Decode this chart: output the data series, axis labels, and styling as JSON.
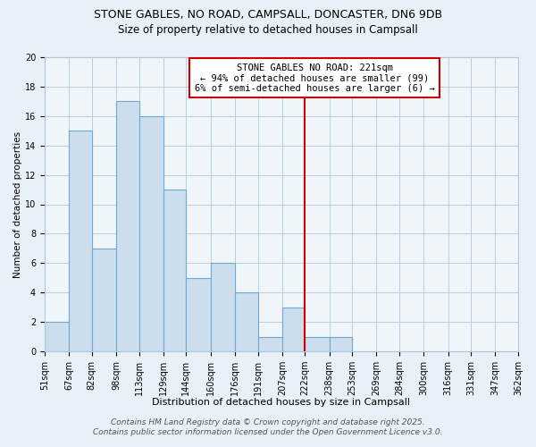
{
  "title": "STONE GABLES, NO ROAD, CAMPSALL, DONCASTER, DN6 9DB",
  "subtitle": "Size of property relative to detached houses in Campsall",
  "xlabel": "Distribution of detached houses by size in Campsall",
  "ylabel": "Number of detached properties",
  "bin_edges": [
    51,
    67,
    82,
    98,
    113,
    129,
    144,
    160,
    176,
    191,
    207,
    222,
    238,
    253,
    269,
    284,
    300,
    316,
    331,
    347,
    362
  ],
  "bin_labels": [
    "51sqm",
    "67sqm",
    "82sqm",
    "98sqm",
    "113sqm",
    "129sqm",
    "144sqm",
    "160sqm",
    "176sqm",
    "191sqm",
    "207sqm",
    "222sqm",
    "238sqm",
    "253sqm",
    "269sqm",
    "284sqm",
    "300sqm",
    "316sqm",
    "331sqm",
    "347sqm",
    "362sqm"
  ],
  "counts": [
    2,
    15,
    7,
    17,
    16,
    11,
    5,
    6,
    4,
    1,
    3,
    1,
    1,
    0,
    0,
    0,
    0,
    0,
    0,
    0
  ],
  "bar_color": "#ccdded",
  "bar_edge_color": "#6aaad4",
  "grid_color": "#b0c8dc",
  "vline_x": 222,
  "vline_color": "#cc0000",
  "annotation_box_text": "STONE GABLES NO ROAD: 221sqm\n← 94% of detached houses are smaller (99)\n6% of semi-detached houses are larger (6) →",
  "footnote_line1": "Contains HM Land Registry data © Crown copyright and database right 2025.",
  "footnote_line2": "Contains public sector information licensed under the Open Government Licence v3.0.",
  "ylim": [
    0,
    20
  ],
  "yticks": [
    0,
    2,
    4,
    6,
    8,
    10,
    12,
    14,
    16,
    18,
    20
  ],
  "fig_background_color": "#e8f0f8",
  "plot_background_color": "#f0f5fa",
  "title_fontsize": 9,
  "subtitle_fontsize": 8.5,
  "xlabel_fontsize": 8,
  "ylabel_fontsize": 7.5,
  "tick_fontsize": 7,
  "annotation_fontsize": 7.5,
  "footnote_fontsize": 6.5
}
